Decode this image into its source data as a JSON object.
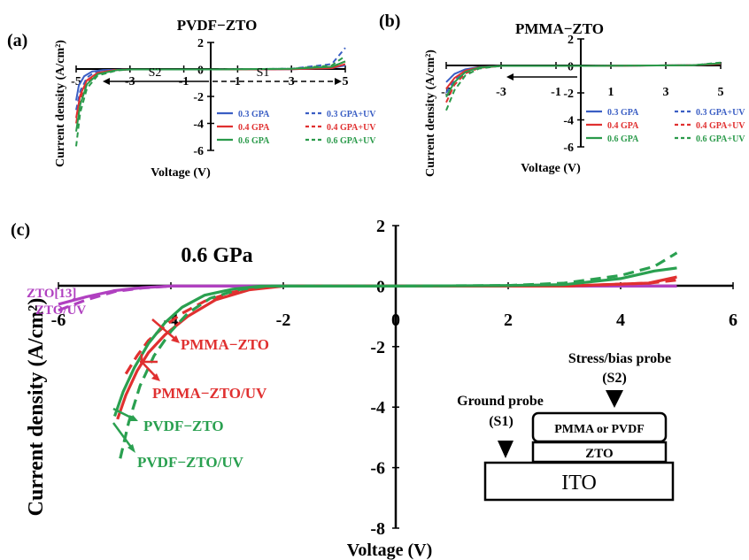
{
  "chart_data": [
    {
      "id": "a",
      "panel_label": "(a)",
      "type": "line",
      "title": "PVDF−ZTO",
      "xlabel": "Voltage (V)",
      "ylabel": "Current density (A/cm²)",
      "xlim": [
        -5,
        5
      ],
      "ylim": [
        -6,
        2
      ],
      "xticks": [
        "-5",
        "-3",
        "-1",
        "1",
        "3",
        "5"
      ],
      "yticks": [
        "2",
        "0",
        "-2",
        "-4",
        "-6"
      ],
      "annotations": [
        "S2",
        "S1"
      ],
      "legend": [
        "0.3 GPA",
        "0.3 GPA+UV",
        "0.4 GPA",
        "0.4 GPA+UV",
        "0.6 GPA",
        "0.6 GPA+UV"
      ],
      "series": [
        {
          "name": "0.3 GPA",
          "color": "#3a5ec4",
          "dash": false,
          "points": [
            [
              -5,
              -2.3
            ],
            [
              -4.9,
              -1.2
            ],
            [
              -4.7,
              -0.5
            ],
            [
              -4.4,
              -0.15
            ],
            [
              -4,
              -0.05
            ],
            [
              -3,
              0
            ],
            [
              0,
              0
            ],
            [
              3,
              0.02
            ],
            [
              4.5,
              0.1
            ],
            [
              5,
              0.3
            ]
          ]
        },
        {
          "name": "0.3 GPA+UV",
          "color": "#3a5ec4",
          "dash": true,
          "points": [
            [
              -5,
              -3.0
            ],
            [
              -4.85,
              -1.6
            ],
            [
              -4.6,
              -0.6
            ],
            [
              -4.3,
              -0.2
            ],
            [
              -3.8,
              -0.05
            ],
            [
              -3,
              0
            ],
            [
              0,
              0
            ],
            [
              3,
              0.05
            ],
            [
              4.5,
              0.4
            ],
            [
              5,
              1.6
            ]
          ]
        },
        {
          "name": "0.4 GPA",
          "color": "#e03030",
          "dash": false,
          "points": [
            [
              -5,
              -3.6
            ],
            [
              -4.85,
              -1.9
            ],
            [
              -4.6,
              -0.8
            ],
            [
              -4.2,
              -0.25
            ],
            [
              -3.6,
              -0.05
            ],
            [
              -3,
              0
            ],
            [
              0,
              0
            ],
            [
              3,
              0.02
            ],
            [
              4.5,
              0.1
            ],
            [
              5,
              0.4
            ]
          ]
        },
        {
          "name": "0.4 GPA+UV",
          "color": "#e03030",
          "dash": true,
          "points": [
            [
              -5,
              -4.0
            ],
            [
              -4.85,
              -2.2
            ],
            [
              -4.6,
              -1.0
            ],
            [
              -4.2,
              -0.3
            ],
            [
              -3.6,
              -0.05
            ],
            [
              -3,
              0
            ],
            [
              0,
              0
            ],
            [
              3,
              0.03
            ],
            [
              4.5,
              0.2
            ],
            [
              5,
              0.6
            ]
          ]
        },
        {
          "name": "0.6 GPA",
          "color": "#2a9a4a",
          "dash": false,
          "points": [
            [
              -5,
              -4.6
            ],
            [
              -4.85,
              -2.6
            ],
            [
              -4.6,
              -1.1
            ],
            [
              -4.2,
              -0.35
            ],
            [
              -3.5,
              -0.05
            ],
            [
              -3,
              0
            ],
            [
              0,
              0
            ],
            [
              3,
              0.05
            ],
            [
              4.5,
              0.2
            ],
            [
              5,
              0.6
            ]
          ]
        },
        {
          "name": "0.6 GPA+UV",
          "color": "#2a9a4a",
          "dash": true,
          "points": [
            [
              -5,
              -5.7
            ],
            [
              -4.85,
              -3.2
            ],
            [
              -4.6,
              -1.4
            ],
            [
              -4.2,
              -0.45
            ],
            [
              -3.5,
              -0.08
            ],
            [
              -3,
              0
            ],
            [
              0,
              0
            ],
            [
              3,
              0.05
            ],
            [
              4.5,
              0.3
            ],
            [
              5,
              1.0
            ]
          ]
        }
      ]
    },
    {
      "id": "b",
      "panel_label": "(b)",
      "type": "line",
      "title": "PMMA−ZTO",
      "xlabel": "Voltage (V)",
      "ylabel": "Current density (A/cm²)",
      "xlim": [
        -5,
        5
      ],
      "ylim": [
        -6,
        2
      ],
      "xticks": [
        "-5",
        "-3",
        "-1",
        "1",
        "3",
        "5"
      ],
      "yticks": [
        "2",
        "0",
        "-2",
        "-4",
        "-6"
      ],
      "legend": [
        "0.3 GPA",
        "0.3 GPA+UV",
        "0.4 GPA",
        "0.4 GPA+UV",
        "0.6 GPA",
        "0.6 GPA+UV"
      ],
      "series": [
        {
          "name": "0.3 GPA",
          "color": "#3a5ec4",
          "dash": false,
          "points": [
            [
              -5,
              -1.2
            ],
            [
              -4.7,
              -0.6
            ],
            [
              -4.3,
              -0.25
            ],
            [
              -3.8,
              -0.08
            ],
            [
              -3,
              0
            ],
            [
              0,
              0
            ],
            [
              4,
              0.05
            ],
            [
              5,
              0.15
            ]
          ]
        },
        {
          "name": "0.3 GPA+UV",
          "color": "#3a5ec4",
          "dash": true,
          "points": [
            [
              -5,
              -2.0
            ],
            [
              -4.7,
              -1.0
            ],
            [
              -4.3,
              -0.4
            ],
            [
              -3.8,
              -0.12
            ],
            [
              -3,
              0
            ],
            [
              0,
              0
            ],
            [
              4,
              0.05
            ],
            [
              5,
              0.2
            ]
          ]
        },
        {
          "name": "0.4 GPA",
          "color": "#e03030",
          "dash": false,
          "points": [
            [
              -5,
              -1.7
            ],
            [
              -4.7,
              -0.9
            ],
            [
              -4.3,
              -0.35
            ],
            [
              -3.8,
              -0.1
            ],
            [
              -3,
              0
            ],
            [
              0,
              0
            ],
            [
              4,
              0.05
            ],
            [
              5,
              0.15
            ]
          ]
        },
        {
          "name": "0.4 GPA+UV",
          "color": "#e03030",
          "dash": true,
          "points": [
            [
              -5,
              -2.7
            ],
            [
              -4.7,
              -1.4
            ],
            [
              -4.3,
              -0.55
            ],
            [
              -3.8,
              -0.15
            ],
            [
              -3,
              0
            ],
            [
              0,
              0
            ],
            [
              4,
              0.05
            ],
            [
              5,
              0.2
            ]
          ]
        },
        {
          "name": "0.6 GPA",
          "color": "#2a9a4a",
          "dash": false,
          "points": [
            [
              -5,
              -2.3
            ],
            [
              -4.7,
              -1.2
            ],
            [
              -4.3,
              -0.45
            ],
            [
              -3.8,
              -0.12
            ],
            [
              -3,
              0
            ],
            [
              0,
              0
            ],
            [
              4,
              0.05
            ],
            [
              5,
              0.2
            ]
          ]
        },
        {
          "name": "0.6 GPA+UV",
          "color": "#2a9a4a",
          "dash": true,
          "points": [
            [
              -5,
              -3.3
            ],
            [
              -4.7,
              -1.8
            ],
            [
              -4.3,
              -0.7
            ],
            [
              -3.8,
              -0.2
            ],
            [
              -3,
              0
            ],
            [
              0,
              0
            ],
            [
              4,
              0.05
            ],
            [
              5,
              0.25
            ]
          ]
        }
      ]
    },
    {
      "id": "c",
      "panel_label": "(c)",
      "type": "line",
      "title": "0.6 GPa",
      "xlabel": "Voltage (V)",
      "ylabel": "Current density (A/cm²)",
      "xlim": [
        -6,
        6
      ],
      "ylim": [
        -8,
        2
      ],
      "xticks": [
        "-6",
        "-4",
        "-2",
        "0",
        "2",
        "4",
        "6"
      ],
      "yticks": [
        "2",
        "0",
        "-2",
        "-4",
        "-6",
        "-8"
      ],
      "series": [
        {
          "name": "ZTO[13]",
          "color": "#b040c0",
          "dash": false,
          "points": [
            [
              -6,
              -0.6
            ],
            [
              -5.5,
              -0.35
            ],
            [
              -5,
              -0.15
            ],
            [
              -4.5,
              -0.05
            ],
            [
              -4,
              0
            ],
            [
              0,
              0
            ],
            [
              5,
              0
            ]
          ]
        },
        {
          "name": "ZTO/UV",
          "color": "#b040c0",
          "dash": true,
          "points": [
            [
              -6,
              -0.8
            ],
            [
              -5.5,
              -0.45
            ],
            [
              -5,
              -0.18
            ],
            [
              -4.5,
              -0.06
            ],
            [
              -4,
              0
            ],
            [
              0,
              0
            ],
            [
              5,
              0
            ]
          ]
        },
        {
          "name": "PMMA−ZTO",
          "color": "#e03030",
          "dash": false,
          "points": [
            [
              -4.95,
              -4.4
            ],
            [
              -4.8,
              -3.6
            ],
            [
              -4.6,
              -2.8
            ],
            [
              -4.4,
              -2.2
            ],
            [
              -4.1,
              -1.6
            ],
            [
              -3.7,
              -1.0
            ],
            [
              -3.2,
              -0.45
            ],
            [
              -2.6,
              -0.12
            ],
            [
              -2,
              0
            ],
            [
              0,
              0
            ],
            [
              3,
              0
            ],
            [
              4.5,
              0.1
            ],
            [
              5,
              0.3
            ]
          ]
        },
        {
          "name": "PMMA−ZTO/UV",
          "color": "#e03030",
          "dash": true,
          "points": [
            [
              -4.8,
              -2.9
            ],
            [
              -4.6,
              -2.3
            ],
            [
              -4.4,
              -1.8
            ],
            [
              -4.1,
              -1.3
            ],
            [
              -3.8,
              -0.9
            ],
            [
              -3.4,
              -0.5
            ],
            [
              -2.9,
              -0.2
            ],
            [
              -2.4,
              -0.05
            ],
            [
              -2,
              0
            ],
            [
              0,
              0
            ],
            [
              3,
              0
            ],
            [
              4.5,
              0.1
            ],
            [
              5,
              0.2
            ]
          ]
        },
        {
          "name": "PVDF−ZTO",
          "color": "#2aa050",
          "dash": false,
          "points": [
            [
              -5,
              -4.3
            ],
            [
              -4.85,
              -3.5
            ],
            [
              -4.65,
              -2.7
            ],
            [
              -4.4,
              -1.9
            ],
            [
              -4.1,
              -1.2
            ],
            [
              -3.8,
              -0.7
            ],
            [
              -3.4,
              -0.3
            ],
            [
              -2.9,
              -0.1
            ],
            [
              -2.4,
              0
            ],
            [
              0,
              0
            ],
            [
              2,
              0.02
            ],
            [
              3,
              0.05
            ],
            [
              4,
              0.25
            ],
            [
              4.6,
              0.5
            ],
            [
              5,
              0.6
            ]
          ]
        },
        {
          "name": "PVDF−ZTO/UV",
          "color": "#2aa050",
          "dash": true,
          "points": [
            [
              -4.9,
              -5.7
            ],
            [
              -4.75,
              -4.5
            ],
            [
              -4.55,
              -3.3
            ],
            [
              -4.3,
              -2.3
            ],
            [
              -4.0,
              -1.5
            ],
            [
              -3.7,
              -0.9
            ],
            [
              -3.3,
              -0.4
            ],
            [
              -2.8,
              -0.12
            ],
            [
              -2.3,
              0
            ],
            [
              0,
              0
            ],
            [
              2,
              0.02
            ],
            [
              3,
              0.1
            ],
            [
              4,
              0.35
            ],
            [
              4.6,
              0.65
            ],
            [
              5,
              1.1
            ]
          ]
        }
      ],
      "callouts": [
        {
          "label": "PMMA−ZTO",
          "color": "#e03030"
        },
        {
          "label": "PMMA−ZTO/UV",
          "color": "#e03030"
        },
        {
          "label": "PVDF−ZTO",
          "color": "#2aa050"
        },
        {
          "label": "PVDF−ZTO/UV",
          "color": "#2aa050"
        },
        {
          "label": "ZTO[13]",
          "color": "#b040c0"
        },
        {
          "label": "ZTO/UV",
          "color": "#b040c0"
        }
      ]
    }
  ],
  "device_schematic": {
    "stress_probe": "Stress/bias probe",
    "stress_probe_id": "(S2)",
    "ground_probe": "Ground probe",
    "ground_probe_id": "(S1)",
    "layer_top": "PMMA or PVDF",
    "layer_mid": "ZTO",
    "layer_bottom": "ITO"
  }
}
